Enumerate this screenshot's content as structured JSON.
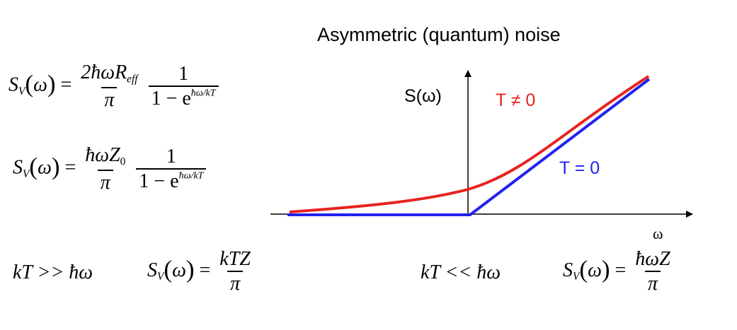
{
  "title": "Asymmetric (quantum) noise",
  "plot": {
    "y_axis_label": "S(ω)",
    "x_axis_label": "ω",
    "curves": [
      {
        "label": "T ≠ 0",
        "color": "#e8231f"
      },
      {
        "label": "T = 0",
        "color": "#2222ee"
      }
    ]
  },
  "equations": {
    "eq1": {
      "lhs_sym": "S",
      "lhs_sub": "V",
      "lhs_arg": "ω",
      "equals": "=",
      "num1": "2ħωR",
      "num1_sub": "eff",
      "den1": "π",
      "num2": "1",
      "den2_base": "1 − e",
      "den2_exp": "ħω/kT"
    },
    "eq2": {
      "lhs_sym": "S",
      "lhs_sub": "V",
      "lhs_arg": "ω",
      "equals": "=",
      "num1": "ħωZ",
      "num1_sub": "0",
      "den1": "π",
      "num2": "1",
      "den2_base": "1 − e",
      "den2_exp": "ħω/kT"
    },
    "eq3": {
      "condition": "kT >> ħω",
      "lhs_sym": "S",
      "lhs_sub": "V",
      "lhs_arg": "ω",
      "equals": "=",
      "num": "kTZ",
      "den": "π"
    },
    "eq4": {
      "condition": "kT << ħω",
      "lhs_sym": "S",
      "lhs_sub": "V",
      "lhs_arg": "ω",
      "equals": "=",
      "num": "ħωZ",
      "den": "π"
    }
  }
}
